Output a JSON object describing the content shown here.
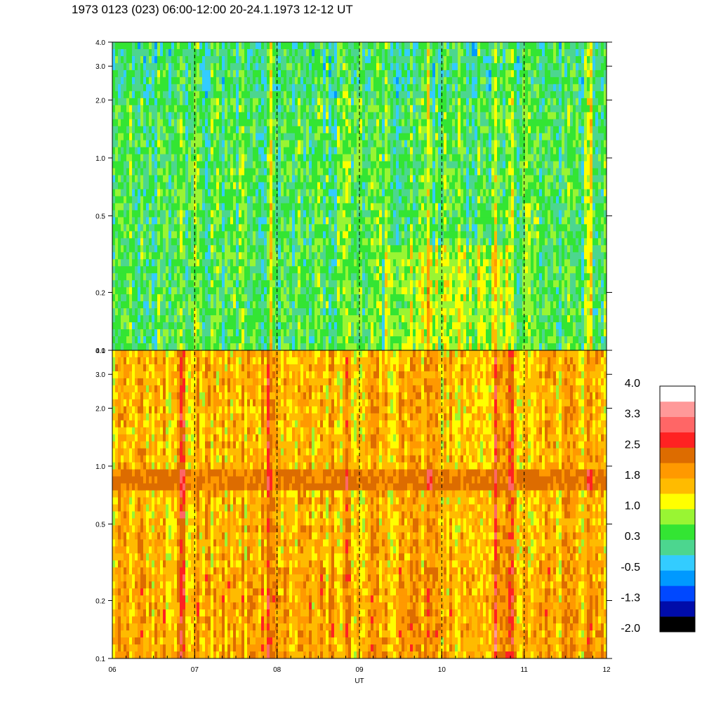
{
  "title": "1973 0123 (023) 06:00-12:00 20-24.1.1973  12-12 UT",
  "chart_data": {
    "type": "heatmap",
    "x_axis": {
      "label": "UT",
      "range": [
        6,
        12
      ],
      "tick_labels": [
        "06",
        "07",
        "08",
        "09",
        "10",
        "11",
        "12"
      ],
      "dashed_gridlines_at": [
        7,
        8,
        9,
        10,
        11
      ]
    },
    "y_scale": "log",
    "panels": [
      {
        "name": "upper",
        "y_range": [
          0.1,
          4.0
        ],
        "y_ticks": [
          0.1,
          0.2,
          0.5,
          1.0,
          2.0,
          3.0,
          4.0
        ],
        "y_tick_labels": [
          "0.1",
          "0.2",
          "0.5",
          "1.0",
          "2.0",
          "3.0",
          "4.0"
        ],
        "typical_level": 0.4,
        "dominant_colors": [
          "green",
          "yellow",
          "light-blue"
        ]
      },
      {
        "name": "lower",
        "y_range": [
          0.1,
          4.0
        ],
        "y_ticks": [
          0.1,
          0.2,
          0.5,
          1.0,
          2.0,
          3.0,
          4.0
        ],
        "y_tick_labels": [
          "0.1",
          "0.2",
          "0.5",
          "1.0",
          "2.0",
          "3.0",
          "4.0"
        ],
        "typical_level": 1.6,
        "band_center": 0.85,
        "band_level": 2.2,
        "dominant_colors": [
          "orange",
          "yellow",
          "dark-orange"
        ]
      }
    ],
    "colorbar": {
      "labels": [
        "4.0",
        "3.3",
        "2.5",
        "1.8",
        "1.0",
        "0.3",
        "-0.5",
        "-1.3",
        "-2.0"
      ],
      "range": [
        -2.0,
        4.0
      ],
      "colors": [
        "#000000",
        "#000caa",
        "#0048ff",
        "#0099ff",
        "#33ccff",
        "#4cd68f",
        "#33e533",
        "#99f533",
        "#ffff00",
        "#ffbb00",
        "#ff9900",
        "#dd6c00",
        "#ff2222",
        "#ff6666",
        "#ff9999",
        "#ffffff"
      ]
    }
  }
}
